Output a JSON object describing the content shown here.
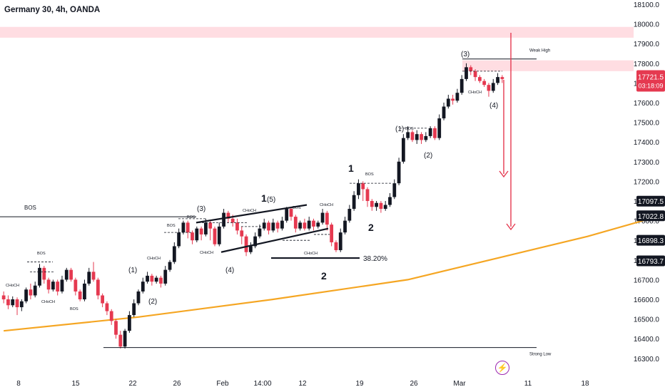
{
  "header": {
    "title": "Germany 30, 4h, OANDA"
  },
  "colors": {
    "up": "#131722",
    "down": "#e53950",
    "ma": "#f5a623",
    "zone": "#ffdde2",
    "arrow": "#e53950",
    "price_tag": "#e53950",
    "level_tag": "#131722"
  },
  "icons": {
    "flash": "lightning-icon"
  },
  "chart_data": {
    "type": "candlestick",
    "title": "Germany 30, 4h, OANDA",
    "ylim": [
      16240,
      18140
    ],
    "y_ticks": [
      "18100.0",
      "18000.0",
      "17900.0",
      "17800.0",
      "17700.0",
      "17600.0",
      "17500.0",
      "17400.0",
      "17300.0",
      "17200.0",
      "17100.0",
      "17000.0",
      "16900.0",
      "16800.0",
      "16700.0",
      "16600.0",
      "16500.0",
      "16400.0",
      "16300.0"
    ],
    "x_ticks": [
      "8",
      "15",
      "22",
      "26",
      "Feb",
      "14:00",
      "12",
      "19",
      "26",
      "Mar",
      "11",
      "18"
    ],
    "price_labels": [
      {
        "value": 17721.5,
        "text": "17721.5",
        "sub": "03:18:09",
        "kind": "current"
      },
      {
        "value": 17097.5,
        "text": "17097.5",
        "kind": "level"
      },
      {
        "value": 17022.8,
        "text": "17022.8",
        "kind": "level"
      },
      {
        "value": 16898.3,
        "text": "16898.3",
        "kind": "level"
      },
      {
        "value": 16793.7,
        "text": "16793.7",
        "kind": "level"
      }
    ],
    "zones": [
      {
        "from": 17930,
        "to": 17985
      },
      {
        "from": 17760,
        "to": 17815
      }
    ],
    "levels": [
      {
        "value": 17020,
        "label": "BOS"
      },
      {
        "value": 17822,
        "label": "Weak High"
      },
      {
        "value": 16355,
        "label": "Strong Low"
      },
      {
        "value": 16810,
        "label": "38.20%"
      }
    ],
    "wave_labels": [
      "(1)",
      "(2)",
      "(3)",
      "(4)",
      "1",
      "(5)",
      "2",
      "1",
      "2",
      "(1)",
      "(2)",
      "(3)",
      "(4)"
    ],
    "structure_labels": [
      "BOS",
      "CHoCH"
    ],
    "candles": [
      [
        16620,
        16600,
        16640,
        16580
      ],
      [
        16600,
        16570,
        16620,
        16550
      ],
      [
        16570,
        16600,
        16615,
        16560
      ],
      [
        16600,
        16560,
        16610,
        16520
      ],
      [
        16560,
        16590,
        16600,
        16540
      ],
      [
        16590,
        16650,
        16660,
        16580
      ],
      [
        16650,
        16620,
        16680,
        16600
      ],
      [
        16620,
        16670,
        16690,
        16610
      ],
      [
        16670,
        16760,
        16780,
        16660
      ],
      [
        16760,
        16700,
        16770,
        16680
      ],
      [
        16700,
        16650,
        16710,
        16630
      ],
      [
        16650,
        16690,
        16700,
        16640
      ],
      [
        16690,
        16640,
        16700,
        16620
      ],
      [
        16640,
        16700,
        16720,
        16630
      ],
      [
        16700,
        16750,
        16760,
        16690
      ],
      [
        16750,
        16700,
        16760,
        16690
      ],
      [
        16700,
        16640,
        16710,
        16620
      ],
      [
        16640,
        16600,
        16650,
        16590
      ],
      [
        16600,
        16680,
        16700,
        16590
      ],
      [
        16680,
        16740,
        16760,
        16670
      ],
      [
        16740,
        16700,
        16790,
        16690
      ],
      [
        16700,
        16620,
        16710,
        16600
      ],
      [
        16620,
        16580,
        16630,
        16560
      ],
      [
        16580,
        16540,
        16590,
        16520
      ],
      [
        16540,
        16490,
        16550,
        16470
      ],
      [
        16490,
        16420,
        16500,
        16400
      ],
      [
        16420,
        16360,
        16440,
        16350
      ],
      [
        16360,
        16440,
        16450,
        16350
      ],
      [
        16440,
        16520,
        16540,
        16430
      ],
      [
        16520,
        16580,
        16600,
        16510
      ],
      [
        16580,
        16640,
        16650,
        16570
      ],
      [
        16640,
        16690,
        16710,
        16630
      ],
      [
        16690,
        16720,
        16740,
        16680
      ],
      [
        16720,
        16690,
        16730,
        16670
      ],
      [
        16690,
        16710,
        16720,
        16680
      ],
      [
        16710,
        16680,
        16720,
        16660
      ],
      [
        16680,
        16750,
        16770,
        16670
      ],
      [
        16750,
        16790,
        16800,
        16740
      ],
      [
        16790,
        16870,
        16890,
        16780
      ],
      [
        16870,
        16940,
        16960,
        16860
      ],
      [
        16940,
        16990,
        17000,
        16930
      ],
      [
        16990,
        16940,
        17000,
        16910
      ],
      [
        16940,
        16900,
        16950,
        16880
      ],
      [
        16900,
        16960,
        16970,
        16890
      ],
      [
        16960,
        16930,
        16970,
        16900
      ],
      [
        16930,
        16990,
        17010,
        16920
      ],
      [
        16990,
        16960,
        17000,
        16900
      ],
      [
        16960,
        16880,
        16970,
        16870
      ],
      [
        16880,
        16970,
        16990,
        16870
      ],
      [
        16970,
        17040,
        17060,
        16960
      ],
      [
        17040,
        17010,
        17050,
        16990
      ],
      [
        17010,
        16990,
        17030,
        16970
      ],
      [
        16990,
        16950,
        17010,
        16930
      ],
      [
        16950,
        16920,
        16970,
        16880
      ],
      [
        16920,
        16840,
        16930,
        16820
      ],
      [
        16840,
        16870,
        16890,
        16830
      ],
      [
        16870,
        16920,
        16940,
        16860
      ],
      [
        16920,
        16960,
        16980,
        16910
      ],
      [
        16960,
        16990,
        17010,
        16950
      ],
      [
        16990,
        16950,
        17000,
        16930
      ],
      [
        16950,
        16990,
        17010,
        16940
      ],
      [
        16990,
        16960,
        17000,
        16940
      ],
      [
        16960,
        17000,
        17020,
        16950
      ],
      [
        17000,
        17060,
        17070,
        16990
      ],
      [
        17060,
        17020,
        17070,
        17000
      ],
      [
        17020,
        16960,
        17030,
        16940
      ],
      [
        16960,
        16990,
        17000,
        16950
      ],
      [
        16990,
        16960,
        17010,
        16950
      ],
      [
        16960,
        17000,
        17020,
        16950
      ],
      [
        17000,
        16970,
        17010,
        16950
      ],
      [
        16970,
        16990,
        17000,
        16960
      ],
      [
        16990,
        17040,
        17060,
        16980
      ],
      [
        17040,
        16980,
        17050,
        16950
      ],
      [
        16980,
        16890,
        16990,
        16870
      ],
      [
        16890,
        16850,
        16900,
        16840
      ],
      [
        16850,
        16940,
        16960,
        16840
      ],
      [
        16940,
        17000,
        17020,
        16930
      ],
      [
        17000,
        17060,
        17080,
        16990
      ],
      [
        17060,
        17130,
        17150,
        17050
      ],
      [
        17130,
        17190,
        17210,
        17110
      ],
      [
        17190,
        17160,
        17200,
        17100
      ],
      [
        17160,
        17100,
        17170,
        17070
      ],
      [
        17100,
        17070,
        17110,
        17050
      ],
      [
        17070,
        17090,
        17100,
        17050
      ],
      [
        17090,
        17060,
        17100,
        17040
      ],
      [
        17060,
        17080,
        17100,
        17050
      ],
      [
        17080,
        17120,
        17140,
        17070
      ],
      [
        17120,
        17190,
        17210,
        17110
      ],
      [
        17190,
        17300,
        17320,
        17180
      ],
      [
        17300,
        17420,
        17440,
        17290
      ],
      [
        17420,
        17450,
        17480,
        17410
      ],
      [
        17450,
        17410,
        17460,
        17400
      ],
      [
        17410,
        17440,
        17460,
        17390
      ],
      [
        17440,
        17410,
        17450,
        17390
      ],
      [
        17410,
        17430,
        17450,
        17400
      ],
      [
        17430,
        17470,
        17480,
        17420
      ],
      [
        17470,
        17420,
        17480,
        17410
      ],
      [
        17420,
        17520,
        17540,
        17410
      ],
      [
        17520,
        17580,
        17600,
        17510
      ],
      [
        17580,
        17620,
        17640,
        17570
      ],
      [
        17620,
        17610,
        17640,
        17590
      ],
      [
        17610,
        17650,
        17670,
        17600
      ],
      [
        17650,
        17720,
        17740,
        17640
      ],
      [
        17720,
        17780,
        17800,
        17710
      ],
      [
        17780,
        17760,
        17790,
        17740
      ],
      [
        17760,
        17730,
        17770,
        17710
      ],
      [
        17730,
        17710,
        17740,
        17700
      ],
      [
        17710,
        17690,
        17720,
        17680
      ],
      [
        17690,
        17660,
        17700,
        17630
      ],
      [
        17660,
        17700,
        17720,
        17650
      ],
      [
        17700,
        17730,
        17750,
        17690
      ],
      [
        17730,
        17720,
        17740,
        17700
      ]
    ],
    "ma200": [
      [
        0,
        16440
      ],
      [
        30,
        16510
      ],
      [
        60,
        16600
      ],
      [
        90,
        16700
      ],
      [
        110,
        16810
      ],
      [
        130,
        16920
      ],
      [
        150,
        17050
      ],
      [
        165,
        17160
      ],
      [
        175,
        17195
      ]
    ]
  }
}
